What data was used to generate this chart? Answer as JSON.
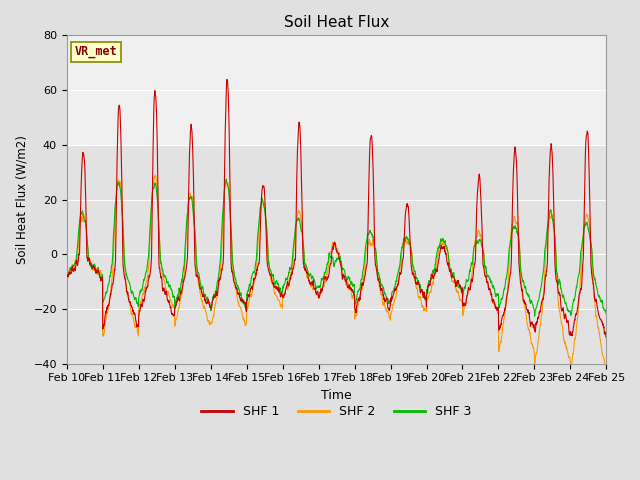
{
  "title": "Soil Heat Flux",
  "xlabel": "Time",
  "ylabel": "Soil Heat Flux (W/m2)",
  "ylim": [
    -40,
    80
  ],
  "yticks": [
    -40,
    -20,
    0,
    20,
    40,
    60,
    80
  ],
  "colors": {
    "SHF 1": "#cc0000",
    "SHF 2": "#ff9900",
    "SHF 3": "#00bb00"
  },
  "legend_label": "VR_met",
  "n_days": 15,
  "points_per_day": 144,
  "background_color": "#e0e0e0",
  "plot_bg_color": "#ebebeb",
  "line_width": 0.8,
  "xtick_labels": [
    "Feb 10",
    "Feb 11",
    "Feb 12",
    "Feb 13",
    "Feb 14",
    "Feb 15",
    "Feb 16",
    "Feb 17",
    "Feb 18",
    "Feb 19",
    "Feb 20",
    "Feb 21",
    "Feb 22",
    "Feb 23",
    "Feb 24",
    "Feb 25"
  ],
  "shf1_day_peaks": [
    38,
    55,
    60,
    47,
    64,
    26,
    48,
    4,
    44,
    19,
    3,
    29,
    39,
    40,
    46
  ],
  "shf1_night_trough": [
    -8,
    -26,
    -22,
    -20,
    -20,
    -16,
    -15,
    -15,
    -20,
    -17,
    -13,
    -20,
    -28,
    -28,
    -30
  ],
  "shf2_day_peaks": [
    14,
    27,
    28,
    22,
    27,
    20,
    15,
    3,
    5,
    5,
    4,
    8,
    13,
    14,
    14
  ],
  "shf2_night_trough": [
    -8,
    -30,
    -20,
    -26,
    -26,
    -20,
    -16,
    -16,
    -24,
    -22,
    -17,
    -22,
    -36,
    -40,
    -42
  ],
  "shf3_day_peaks": [
    15,
    26,
    26,
    21,
    27,
    20,
    13,
    -3,
    8,
    6,
    5,
    5,
    10,
    15,
    11
  ],
  "shf3_night_trough": [
    -8,
    -18,
    -15,
    -19,
    -20,
    -14,
    -12,
    -12,
    -18,
    -16,
    -13,
    -15,
    -20,
    -22,
    -22
  ]
}
